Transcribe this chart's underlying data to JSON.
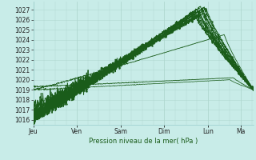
{
  "bg_color": "#c8ece8",
  "grid_major_color": "#b0d8d0",
  "grid_minor_color": "#c0e0d8",
  "line_color": "#1a5c1a",
  "xlabel_text": "Pression niveau de la mer( hPa )",
  "x_labels": [
    "Jeu",
    "Ven",
    "Sam",
    "Dim",
    "Lun",
    "Ma"
  ],
  "ylim": [
    1015.5,
    1027.8
  ],
  "xlim": [
    0,
    121
  ],
  "yticks": [
    1016,
    1017,
    1018,
    1019,
    1020,
    1021,
    1022,
    1023,
    1024,
    1025,
    1026,
    1027
  ],
  "x_day_positions": [
    0,
    24,
    48,
    72,
    96,
    114
  ],
  "num_hours": 121
}
